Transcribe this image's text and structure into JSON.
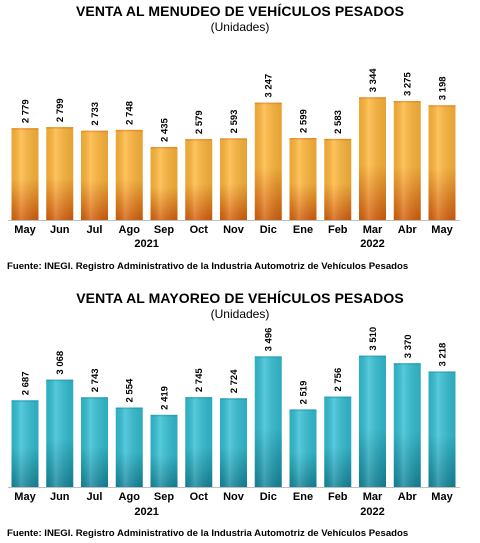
{
  "chart_data": [
    {
      "type": "bar",
      "title": "VENTA AL MENUDEO DE VEHÍCULOS PESADOS",
      "subtitle": "(Unidades)",
      "categories": [
        "May",
        "Jun",
        "Jul",
        "Ago",
        "Sep",
        "Oct",
        "Nov",
        "Dic",
        "Ene",
        "Feb",
        "Mar",
        "Abr",
        "May"
      ],
      "year_labels": [
        {
          "label": "2021",
          "between": [
            3,
            4
          ]
        },
        {
          "label": "2022",
          "between": [
            10,
            10
          ]
        }
      ],
      "values": [
        2779,
        2799,
        2733,
        2748,
        2435,
        2579,
        2593,
        3247,
        2599,
        2583,
        3344,
        3275,
        3198
      ],
      "value_labels": [
        "2 779",
        "2 799",
        "2 733",
        "2 748",
        "2 435",
        "2 579",
        "2 593",
        "3 247",
        "2 599",
        "2 583",
        "3 344",
        "3 275",
        "3 198"
      ],
      "ylim": [
        1100,
        3550
      ],
      "grid": false,
      "bar_color_light": "#ffb63a",
      "bar_color_dark": "#d45f0c",
      "source": "Fuente: INEGI. Registro Administrativo de la Industria Automotriz de Vehículos Pesados"
    },
    {
      "type": "bar",
      "title": "VENTA AL MAYOREO DE VEHÍCULOS PESADOS",
      "subtitle": "(Unidades)",
      "categories": [
        "May",
        "Jun",
        "Jul",
        "Ago",
        "Sep",
        "Oct",
        "Nov",
        "Dic",
        "Ene",
        "Feb",
        "Mar",
        "Abr",
        "May"
      ],
      "year_labels": [
        {
          "label": "2021",
          "between": [
            3,
            4
          ]
        },
        {
          "label": "2022",
          "between": [
            10,
            10
          ]
        }
      ],
      "values": [
        2687,
        3068,
        2743,
        2554,
        2419,
        2745,
        2724,
        3496,
        2519,
        2756,
        3510,
        3370,
        3218
      ],
      "value_labels": [
        "2 687",
        "3 068",
        "2 743",
        "2 554",
        "2 419",
        "2 745",
        "2 724",
        "3 496",
        "2 519",
        "2 756",
        "3 510",
        "3 370",
        "3 218"
      ],
      "ylim": [
        1090,
        3650
      ],
      "grid": false,
      "bar_color_light": "#32bed3",
      "bar_color_dark": "#13869a",
      "source": "Fuente: INEGI. Registro Administrativo de la Industria Automotriz de Vehículos Pesados"
    }
  ]
}
